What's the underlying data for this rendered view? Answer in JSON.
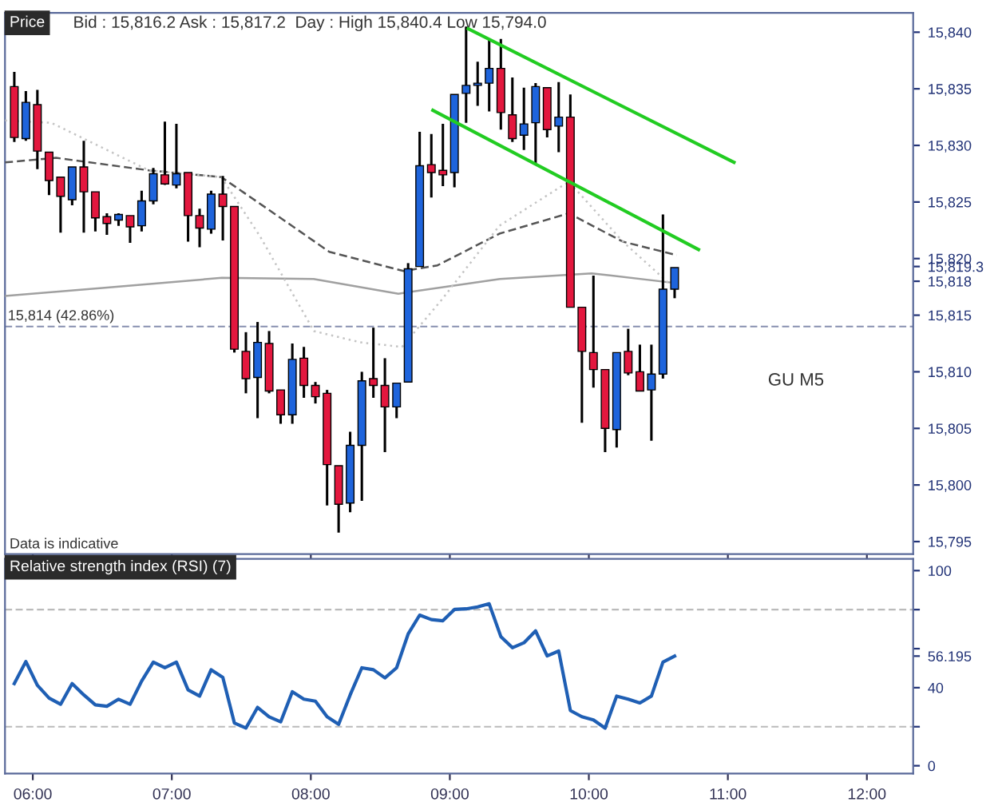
{
  "chart_data": [
    {
      "type": "candlestick",
      "title": "Price",
      "annotations": [
        "Bid : 15,816.2 Ask : 15,817.2  Day : High 15,840.4 Low 15,794.0",
        "GU M5",
        "Data is indicative"
      ],
      "x": [
        5.867,
        5.95,
        6.033,
        6.117,
        6.2,
        6.283,
        6.367,
        6.45,
        6.533,
        6.617,
        6.7,
        6.783,
        6.867,
        6.95,
        7.033,
        7.117,
        7.2,
        7.283,
        7.367,
        7.45,
        7.533,
        7.617,
        7.7,
        7.783,
        7.867,
        7.95,
        8.033,
        8.117,
        8.2,
        8.283,
        8.367,
        8.45,
        8.533,
        8.617,
        8.7,
        8.783,
        8.867,
        8.95,
        9.033,
        9.117,
        9.2,
        9.283,
        9.367,
        9.45,
        9.533,
        9.617,
        9.7,
        9.783,
        9.867,
        9.95,
        10.033,
        10.117,
        10.2,
        10.283,
        10.367,
        10.45,
        10.533,
        10.617
      ],
      "ohlc": [
        [
          15835.2,
          15836.5,
          15830.3,
          15830.7
        ],
        [
          15830.6,
          15834.8,
          15830.4,
          15833.8
        ],
        [
          15833.6,
          15834.9,
          15827.9,
          15829.5
        ],
        [
          15829.4,
          15829.4,
          15825.6,
          15826.9
        ],
        [
          15827.2,
          15827.2,
          15822.3,
          15825.5
        ],
        [
          15825.2,
          15828.1,
          15824.7,
          15828.1
        ],
        [
          15828.1,
          15830.4,
          15822.3,
          15825.9
        ],
        [
          15825.9,
          15825.9,
          15822.4,
          15823.6
        ],
        [
          15823.7,
          15824.0,
          15822.1,
          15823.1
        ],
        [
          15823.4,
          15824.0,
          15822.9,
          15823.9
        ],
        [
          15823.8,
          15823.8,
          15821.4,
          15822.8
        ],
        [
          15822.9,
          15826.0,
          15822.4,
          15825.1
        ],
        [
          15825.1,
          15828.0,
          15824.8,
          15827.5
        ],
        [
          15827.4,
          15832.1,
          15826.5,
          15826.6
        ],
        [
          15826.5,
          15831.9,
          15826.2,
          15827.5
        ],
        [
          15827.6,
          15827.6,
          15821.5,
          15823.8
        ],
        [
          15823.8,
          15824.4,
          15821.0,
          15822.7
        ],
        [
          15822.6,
          15826.0,
          15822.2,
          15825.7
        ],
        [
          15825.7,
          15827.3,
          15821.6,
          15824.6
        ],
        [
          15824.6,
          15824.6,
          15811.7,
          15812.0
        ],
        [
          15811.8,
          15813.5,
          15808.1,
          15809.4
        ],
        [
          15809.5,
          15814.4,
          15805.9,
          15812.6
        ],
        [
          15812.5,
          15813.6,
          15808.1,
          15808.3
        ],
        [
          15808.4,
          15808.4,
          15805.4,
          15806.2
        ],
        [
          15806.2,
          15812.5,
          15805.4,
          15811.1
        ],
        [
          15811.2,
          15812.2,
          15807.7,
          15808.8
        ],
        [
          15808.8,
          15809.1,
          15807.2,
          15807.8
        ],
        [
          15808.1,
          15808.4,
          15798.2,
          15801.8
        ],
        [
          15801.7,
          15801.7,
          15795.8,
          15798.3
        ],
        [
          15798.4,
          15804.7,
          15797.6,
          15803.5
        ],
        [
          15803.5,
          15810.0,
          15798.6,
          15809.2
        ],
        [
          15809.4,
          15813.9,
          15807.7,
          15808.8
        ],
        [
          15808.8,
          15811.2,
          15802.9,
          15806.9
        ],
        [
          15806.9,
          15809.0,
          15805.9,
          15809.0
        ],
        [
          15809.1,
          15819.6,
          15809.1,
          15819.1
        ],
        [
          15819.3,
          15831.2,
          15819.3,
          15828.2
        ],
        [
          15828.3,
          15831.0,
          15825.4,
          15827.6
        ],
        [
          15827.8,
          15831.9,
          15826.4,
          15827.4
        ],
        [
          15827.6,
          15834.5,
          15826.3,
          15834.5
        ],
        [
          15834.6,
          15840.5,
          15832.0,
          15835.3
        ],
        [
          15835.3,
          15837.4,
          15833.5,
          15835.5
        ],
        [
          15835.5,
          15839.4,
          15833.0,
          15836.8
        ],
        [
          15836.8,
          15839.4,
          15831.4,
          15832.9
        ],
        [
          15832.7,
          15836.0,
          15830.3,
          15830.6
        ],
        [
          15830.9,
          15835.1,
          15829.6,
          15831.9
        ],
        [
          15832.0,
          15835.5,
          15828.4,
          15835.2
        ],
        [
          15835.1,
          15835.1,
          15830.7,
          15831.4
        ],
        [
          15831.7,
          15835.6,
          15829.4,
          15832.5
        ],
        [
          15832.5,
          15834.5,
          15815.7,
          15815.7
        ],
        [
          15815.7,
          15815.7,
          15805.5,
          15811.8
        ],
        [
          15811.7,
          15818.5,
          15808.6,
          15810.2
        ],
        [
          15810.2,
          15810.2,
          15802.9,
          15805.0
        ],
        [
          15804.9,
          15811.7,
          15803.3,
          15811.7
        ],
        [
          15811.8,
          15813.8,
          15809.7,
          15809.9
        ],
        [
          15810.0,
          15812.4,
          15808.3,
          15808.3
        ],
        [
          15808.4,
          15812.4,
          15803.9,
          15809.8
        ],
        [
          15809.8,
          15823.9,
          15809.4,
          15817.3
        ],
        [
          15817.3,
          15819.2,
          15816.5,
          15819.2
        ]
      ],
      "colors": [
        "#e3173e",
        "#1e64dc",
        "#e3173e",
        "#e3173e",
        "#e3173e",
        "#1e64dc",
        "#e3173e",
        "#e3173e",
        "#e3173e",
        "#1e64dc",
        "#e3173e",
        "#1e64dc",
        "#1e64dc",
        "#e3173e",
        "#1e64dc",
        "#e3173e",
        "#e3173e",
        "#1e64dc",
        "#e3173e",
        "#e3173e",
        "#e3173e",
        "#1e64dc",
        "#e3173e",
        "#e3173e",
        "#1e64dc",
        "#e3173e",
        "#e3173e",
        "#e3173e",
        "#e3173e",
        "#1e64dc",
        "#1e64dc",
        "#e3173e",
        "#e3173e",
        "#1e64dc",
        "#1e64dc",
        "#1e64dc",
        "#e3173e",
        "#e3173e",
        "#1e64dc",
        "#1e64dc",
        "#1e64dc",
        "#1e64dc",
        "#e3173e",
        "#e3173e",
        "#1e64dc",
        "#1e64dc",
        "#e3173e",
        "#1e64dc",
        "#e3173e",
        "#e3173e",
        "#e3173e",
        "#e3173e",
        "#1e64dc",
        "#e3173e",
        "#e3173e",
        "#1e64dc",
        "#1e64dc",
        "#1e64dc"
      ],
      "series": [
        {
          "type": "line",
          "color": "#a0a0a0",
          "line_style": "solid",
          "x": [
            5.8,
            6.5,
            7.36,
            8.02,
            8.63,
            9.36,
            10.02,
            10.58
          ],
          "values": [
            15816.7,
            15817.4,
            15818.3,
            15818.2,
            15816.9,
            15818.2,
            15818.7,
            15817.9
          ]
        },
        {
          "type": "line",
          "color": "#555555",
          "line_style": "dashed",
          "x": [
            5.8,
            6.167,
            6.833,
            7.356,
            7.711,
            8.133,
            8.667,
            8.911,
            9.356,
            9.856,
            10.244,
            10.633
          ],
          "values": [
            15828.5,
            15828.9,
            15827.8,
            15827.2,
            15824.2,
            15820.6,
            15818.9,
            15819.4,
            15822.2,
            15824.0,
            15821.5,
            15820.3
          ]
        },
        {
          "type": "line",
          "color": "#c4c4c4",
          "line_style": "dotted",
          "x": [
            5.8,
            6.133,
            6.833,
            7.356,
            7.633,
            8.022,
            8.356,
            8.656,
            8.944,
            9.356,
            9.856,
            10.244,
            10.578
          ],
          "values": [
            15832.2,
            15832.0,
            15827.8,
            15827.2,
            15822.0,
            15813.6,
            15812.6,
            15812.2,
            15816.4,
            15822.9,
            15826.8,
            15821.5,
            15817.8
          ]
        },
        {
          "type": "line",
          "color": "#22cc22",
          "line_style": "solid",
          "x": [
            9.133,
            11.044
          ],
          "values": [
            15840.3,
            15828.5
          ]
        },
        {
          "type": "line",
          "color": "#22cc22",
          "line_style": "solid",
          "x": [
            8.878,
            10.789
          ],
          "values": [
            15833.1,
            15820.8
          ]
        }
      ],
      "ref_lines": [
        {
          "axis": "y",
          "value": 15814,
          "label": "15,814 (42.86%)",
          "color": "#8890b0",
          "line_style": "dashed"
        }
      ],
      "xlim": [
        5.8,
        12.333
      ],
      "ylim": [
        15793.9,
        15841.7
      ],
      "xticks": [
        {
          "value": 6,
          "label": null
        },
        {
          "value": 7,
          "label": null
        },
        {
          "value": 8,
          "label": null
        },
        {
          "value": 9,
          "label": null
        },
        {
          "value": 10,
          "label": null
        },
        {
          "value": 11,
          "label": null
        },
        {
          "value": 12,
          "label": null
        }
      ],
      "yticks": [
        {
          "value": 15795,
          "label": "15,795"
        },
        {
          "value": 15800,
          "label": "15,800"
        },
        {
          "value": 15805,
          "label": "15,805"
        },
        {
          "value": 15810,
          "label": "15,810"
        },
        {
          "value": 15815,
          "label": "15,815"
        },
        {
          "value": 15818,
          "label": "15,818"
        },
        {
          "value": 15819.3,
          "label": "15,819.3"
        },
        {
          "value": 15820,
          "label": "15,820"
        },
        {
          "value": 15825,
          "label": "15,825"
        },
        {
          "value": 15830,
          "label": "15,830"
        },
        {
          "value": 15835,
          "label": "15,835"
        },
        {
          "value": 15840,
          "label": "15,840"
        }
      ],
      "tick_labels": "y",
      "grid": false
    },
    {
      "type": "line",
      "title": "Relative strength index (RSI) (7)",
      "x": [
        5.867,
        5.95,
        6.033,
        6.117,
        6.2,
        6.283,
        6.367,
        6.45,
        6.533,
        6.617,
        6.7,
        6.783,
        6.867,
        6.95,
        7.033,
        7.117,
        7.2,
        7.283,
        7.367,
        7.45,
        7.533,
        7.617,
        7.7,
        7.783,
        7.867,
        7.95,
        8.033,
        8.117,
        8.2,
        8.283,
        8.367,
        8.45,
        8.533,
        8.617,
        8.7,
        8.783,
        8.867,
        8.95,
        9.033,
        9.117,
        9.2,
        9.283,
        9.367,
        9.45,
        9.533,
        9.617,
        9.7,
        9.783,
        9.867,
        9.95,
        10.033,
        10.117,
        10.2,
        10.283,
        10.367,
        10.45,
        10.533,
        10.617
      ],
      "series": [
        {
          "color": "#1f5fb4",
          "values": [
            42.1,
            53.4,
            41.2,
            34.7,
            31.5,
            42.1,
            36.3,
            31.2,
            30.5,
            34.1,
            31.5,
            43.4,
            53.1,
            50.2,
            53.1,
            38.9,
            35.7,
            49.2,
            45.3,
            21.9,
            19.3,
            29.9,
            25.1,
            22.5,
            37.9,
            34.1,
            33.1,
            25.1,
            21.2,
            36.3,
            50.2,
            49.2,
            45.0,
            50.2,
            67.5,
            77.2,
            74.9,
            74.3,
            80.1,
            80.4,
            81.4,
            83.0,
            66.2,
            60.5,
            63.0,
            69.1,
            56.3,
            58.8,
            28.3,
            25.1,
            23.5,
            19.3,
            35.7,
            34.1,
            32.2,
            35.7,
            53.1,
            56.195
          ]
        }
      ],
      "ref_lines": [
        {
          "axis": "y",
          "value": 20,
          "color": "#bbbbbb",
          "line_style": "dashed"
        },
        {
          "axis": "y",
          "value": 80,
          "color": "#bbbbbb",
          "line_style": "dashed"
        }
      ],
      "xlim": [
        5.8,
        12.333
      ],
      "ylim": [
        -4,
        106
      ],
      "xticks": [
        {
          "value": 6,
          "label": "06:00"
        },
        {
          "value": 7,
          "label": "07:00"
        },
        {
          "value": 8,
          "label": "08:00"
        },
        {
          "value": 9,
          "label": "09:00"
        },
        {
          "value": 10,
          "label": "10:00"
        },
        {
          "value": 11,
          "label": "11:00"
        },
        {
          "value": 12,
          "label": "12:00"
        }
      ],
      "yticks": [
        0,
        {
          "value": 20,
          "label": null
        },
        40,
        {
          "value": 56.195,
          "label": "56.195"
        },
        {
          "value": 60,
          "label": null
        },
        {
          "value": 80,
          "label": null
        },
        100
      ],
      "grid": false
    }
  ]
}
